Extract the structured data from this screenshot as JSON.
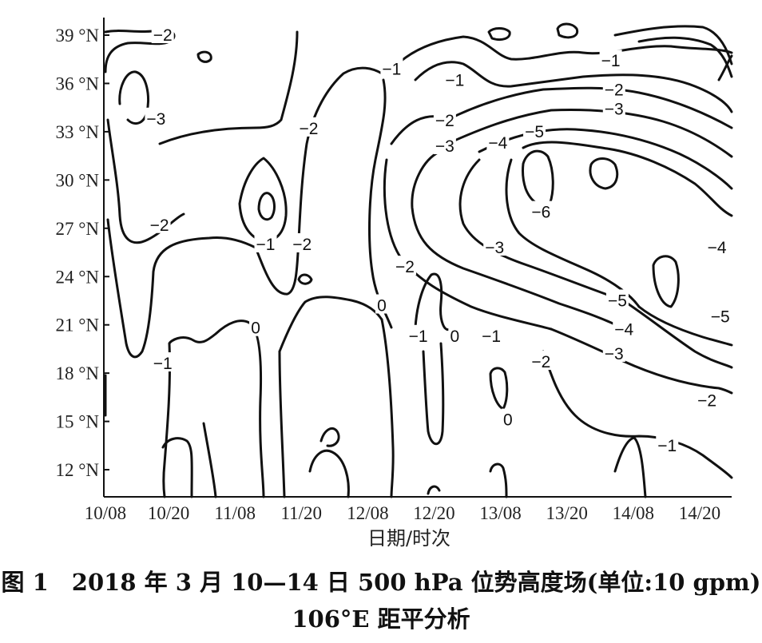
{
  "chart_data": {
    "type": "contour",
    "xlabel": "日期/时次",
    "ylabel": "",
    "x_ticks": [
      "10/08",
      "10/20",
      "11/08",
      "11/20",
      "12/08",
      "12/20",
      "13/08",
      "13/20",
      "14/08",
      "14/20"
    ],
    "y_ticks": [
      "39 °N",
      "36 °N",
      "33 °N",
      "30 °N",
      "27 °N",
      "24 °N",
      "21 °N",
      "18 °N",
      "15 °N",
      "12 °N"
    ],
    "y_values": [
      39,
      36,
      33,
      30,
      27,
      24,
      21,
      18,
      15,
      12
    ],
    "ylim": [
      10,
      40
    ],
    "grid": false,
    "contour_labels": [
      {
        "text": "-2",
        "x": 0.55,
        "y": 39.0
      },
      {
        "text": "-3",
        "x": 0.45,
        "y": 33.8
      },
      {
        "text": "-2",
        "x": 0.5,
        "y": 27.2
      },
      {
        "text": "-1",
        "x": 0.55,
        "y": 18.6
      },
      {
        "text": "-2",
        "x": 2.75,
        "y": 33.2
      },
      {
        "text": "-1",
        "x": 2.1,
        "y": 26.0
      },
      {
        "text": "-2",
        "x": 2.65,
        "y": 26.0
      },
      {
        "text": "0",
        "x": 1.95,
        "y": 20.8
      },
      {
        "text": "-1",
        "x": 4.0,
        "y": 36.9
      },
      {
        "text": "-1",
        "x": 4.95,
        "y": 36.2
      },
      {
        "text": "0",
        "x": 3.85,
        "y": 22.2
      },
      {
        "text": "-2",
        "x": 4.8,
        "y": 33.7
      },
      {
        "text": "-3",
        "x": 4.8,
        "y": 32.1
      },
      {
        "text": "-4",
        "x": 5.6,
        "y": 32.3
      },
      {
        "text": "-5",
        "x": 6.15,
        "y": 33.0
      },
      {
        "text": "-6",
        "x": 6.25,
        "y": 28.0
      },
      {
        "text": "-3",
        "x": 5.55,
        "y": 25.8
      },
      {
        "text": "-2",
        "x": 4.2,
        "y": 24.6
      },
      {
        "text": "-1",
        "x": 4.4,
        "y": 20.3
      },
      {
        "text": "0",
        "x": 4.95,
        "y": 20.3
      },
      {
        "text": "-1",
        "x": 5.5,
        "y": 20.3
      },
      {
        "text": "-2",
        "x": 6.25,
        "y": 18.7
      },
      {
        "text": "0",
        "x": 5.75,
        "y": 15.1
      },
      {
        "text": "-1",
        "x": 7.3,
        "y": 37.4
      },
      {
        "text": "-2",
        "x": 7.35,
        "y": 35.6
      },
      {
        "text": "-3",
        "x": 7.35,
        "y": 34.4
      },
      {
        "text": "-4",
        "x": 8.9,
        "y": 25.8
      },
      {
        "text": "-5",
        "x": 7.4,
        "y": 22.5
      },
      {
        "text": "-4",
        "x": 7.5,
        "y": 20.7
      },
      {
        "text": "-3",
        "x": 7.35,
        "y": 19.2
      },
      {
        "text": "-5",
        "x": 8.95,
        "y": 21.5
      },
      {
        "text": "-2",
        "x": 8.75,
        "y": 16.3
      },
      {
        "text": "-1",
        "x": 8.15,
        "y": 13.5
      }
    ]
  },
  "caption": {
    "line1": "图 1　2018 年 3 月 10—14 日 500 hPa 位势高度场(单位:10 gpm)",
    "line2": "106°E 距平分析"
  }
}
